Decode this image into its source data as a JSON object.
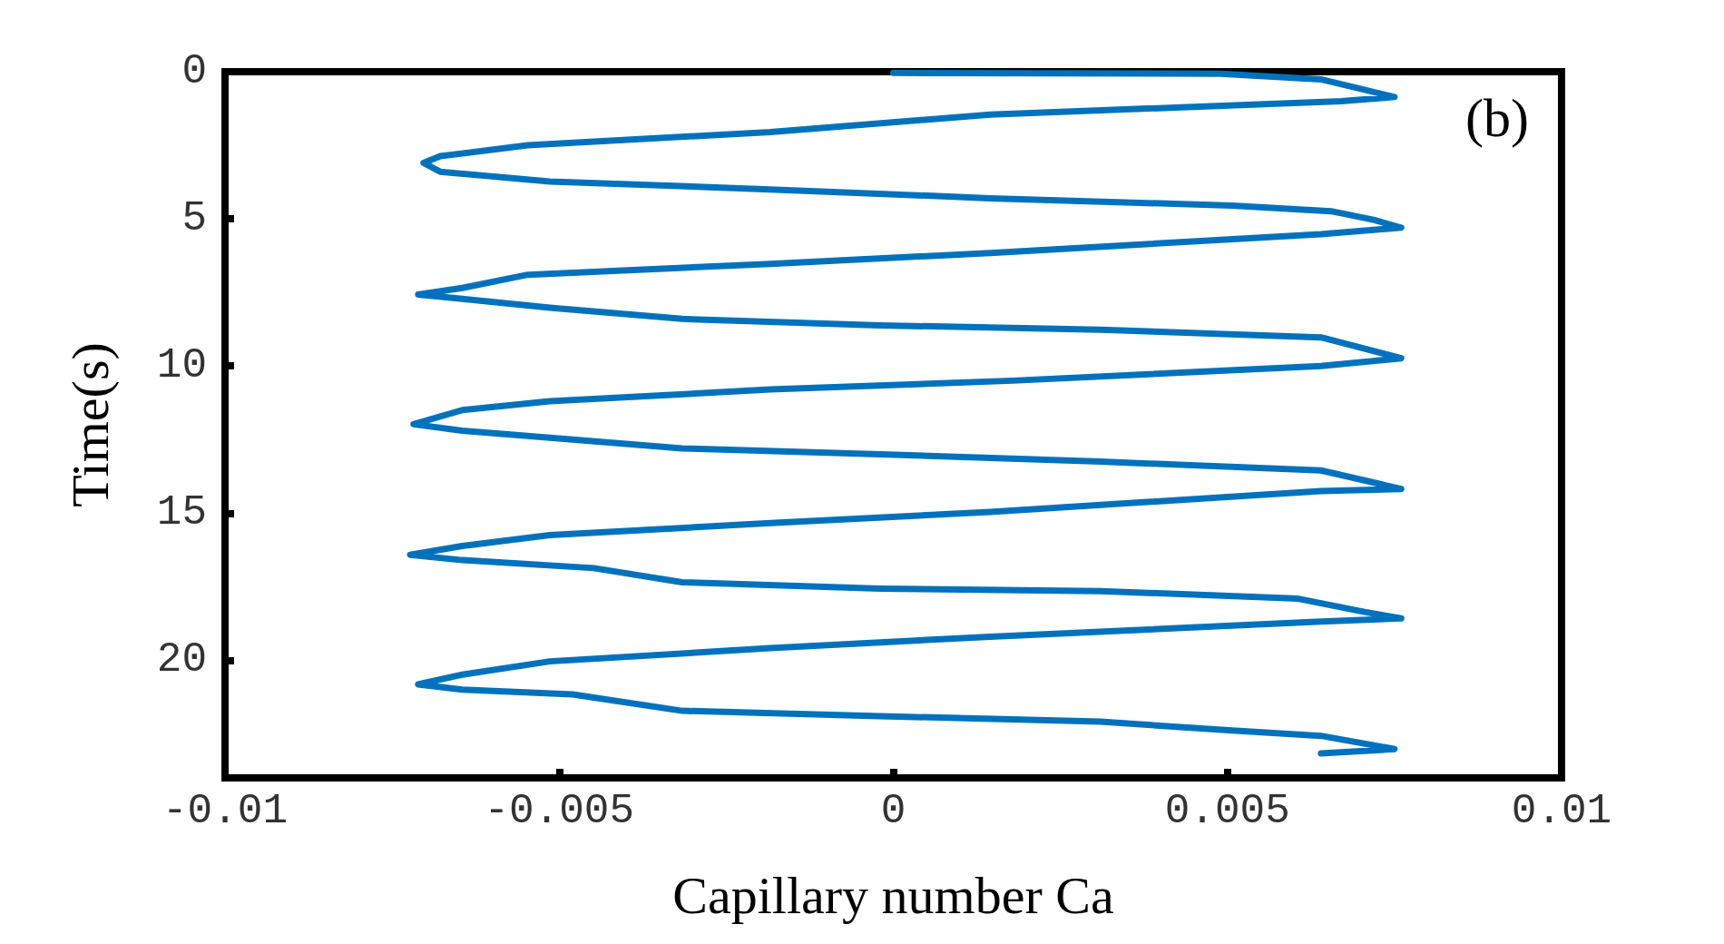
{
  "chart_data": {
    "type": "line",
    "xlabel": "Capillary number Ca",
    "ylabel": "Time(s)",
    "annotations": [
      "(b)"
    ],
    "xlim": [
      -0.01,
      0.01
    ],
    "xticks": [
      -0.01,
      -0.005,
      0,
      0.005,
      0.01
    ],
    "ylim": [
      24,
      0
    ],
    "yticks": [
      0,
      5,
      10,
      15,
      20
    ],
    "grid": false,
    "marker": "none",
    "line_style": "solid",
    "series": [
      {
        "color": "#0072bd",
        "x": [
          0,
          0.0049,
          0.0064,
          0.0075,
          0.0067,
          0.00145,
          -0.00184,
          -0.00547,
          -0.00678,
          -0.00703,
          -0.00678,
          -0.00514,
          -0.00184,
          0.00145,
          0.00507,
          0.00655,
          0.0072,
          0.0076,
          0.0064,
          0.00145,
          -0.00184,
          -0.00547,
          -0.00645,
          -0.00711,
          -0.00645,
          -0.00514,
          -0.00316,
          -0.0002,
          0.0031,
          0.0064,
          0.0076,
          0.0064,
          0.00178,
          -0.00184,
          -0.00514,
          -0.00645,
          -0.00718,
          -0.00645,
          -0.0048,
          -0.00316,
          -0.0002,
          0.0031,
          0.0064,
          0.0076,
          0.0064,
          0.00145,
          -0.00184,
          -0.00514,
          -0.00645,
          -0.00723,
          -0.00645,
          -0.00448,
          -0.00316,
          -0.0002,
          0.0031,
          0.00606,
          0.00705,
          0.0076,
          0.0064,
          0.00145,
          -0.00184,
          -0.00514,
          -0.00645,
          -0.00711,
          -0.00645,
          -0.0048,
          -0.00316,
          -0.0002,
          0.0031,
          0.00507,
          0.0064,
          0.0075,
          0.0064
        ],
        "values": [
          0.04,
          0.07,
          0.26,
          0.86,
          1.0,
          1.46,
          2.05,
          2.5,
          2.87,
          3.1,
          3.4,
          3.73,
          4.0,
          4.3,
          4.55,
          4.74,
          5.04,
          5.3,
          5.52,
          6.16,
          6.53,
          6.9,
          7.35,
          7.57,
          7.72,
          8.02,
          8.4,
          8.62,
          8.77,
          9.03,
          9.74,
          10.0,
          10.5,
          10.8,
          11.2,
          11.5,
          11.98,
          12.2,
          12.5,
          12.8,
          13.0,
          13.25,
          13.55,
          14.18,
          14.25,
          14.96,
          15.34,
          15.75,
          16.12,
          16.42,
          16.6,
          16.87,
          17.35,
          17.57,
          17.65,
          17.91,
          18.36,
          18.58,
          18.69,
          19.2,
          19.59,
          20.04,
          20.49,
          20.82,
          21.0,
          21.16,
          21.72,
          21.9,
          22.09,
          22.39,
          22.57,
          23.02,
          23.17
        ]
      }
    ]
  }
}
